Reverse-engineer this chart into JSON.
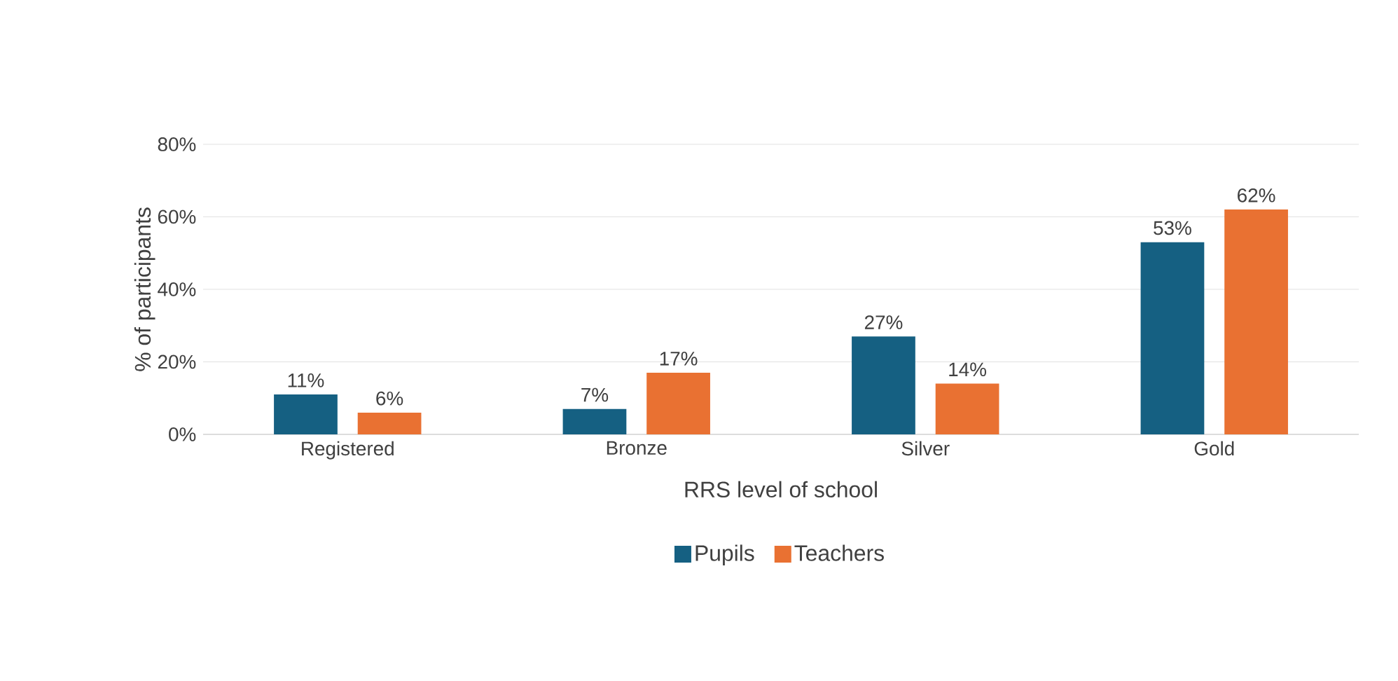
{
  "chart_data": {
    "type": "bar",
    "xlabel": "RRS level of school",
    "ylabel": "% of participants",
    "categories": [
      "Registered",
      "Bronze",
      "Silver",
      "Gold"
    ],
    "series": [
      {
        "name": "Pupils",
        "color": "#156082",
        "values": [
          11,
          7,
          27,
          53
        ],
        "value_labels": [
          "11%",
          "7%",
          "27%",
          "53%"
        ]
      },
      {
        "name": "Teachers",
        "color": "#e97132",
        "values": [
          6,
          17,
          14,
          62
        ],
        "value_labels": [
          "6%",
          "17%",
          "14%",
          "62%"
        ]
      }
    ],
    "ylim": [
      0,
      80
    ],
    "yticks": [
      {
        "value": 0,
        "label": "0%"
      },
      {
        "value": 20,
        "label": "20%"
      },
      {
        "value": 40,
        "label": "40%"
      },
      {
        "value": 60,
        "label": "60%"
      },
      {
        "value": 80,
        "label": "80%"
      }
    ],
    "grid": "y",
    "legend": "bottom"
  }
}
